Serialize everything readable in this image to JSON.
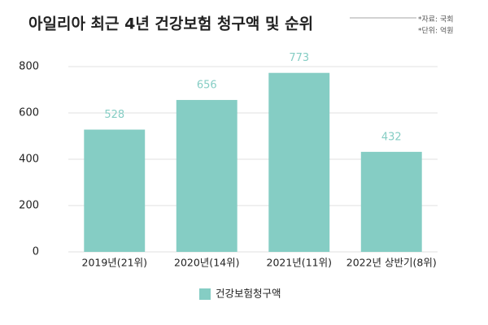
{
  "chart_data": {
    "type": "bar",
    "title": "아일리아 최근 4년 건강보험 청구액 및 순위",
    "notes": [
      "*자료: 국회",
      "*단위: 억원"
    ],
    "categories": [
      "2019년(21위)",
      "2020년(14위)",
      "2021년(11위)",
      "2022년 상반기(8위)"
    ],
    "series": [
      {
        "name": "건강보험청구액",
        "color": "#85cdc4",
        "values": [
          528,
          656,
          773,
          432
        ]
      }
    ],
    "ylim": [
      0,
      800
    ],
    "yticks": [
      0,
      200,
      400,
      600,
      800
    ],
    "grid": true,
    "legend": "bottom"
  }
}
